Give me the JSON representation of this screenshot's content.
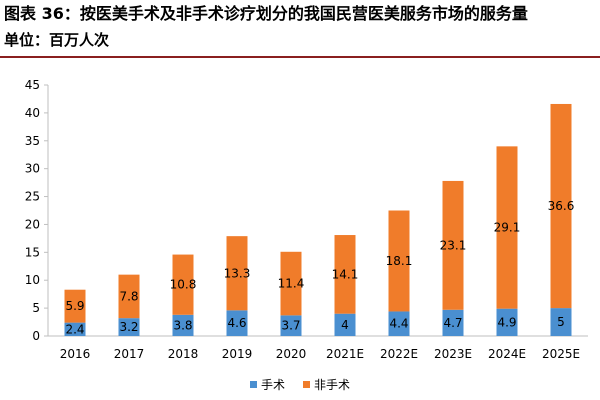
{
  "title": "图表 36：按医美手术及非手术诊疗划分的我国民营医美服务市场的服务量",
  "unit": "单位：百万人次",
  "colors": {
    "surgical": "#4a8fd0",
    "nonsurgical": "#f07c2a",
    "axis": "#bfbfbf",
    "rule": "#8a1f1f"
  },
  "chart_data": {
    "type": "bar",
    "stacked": true,
    "categories": [
      "2016",
      "2017",
      "2018",
      "2019",
      "2020",
      "2021E",
      "2022E",
      "2023E",
      "2024E",
      "2025E"
    ],
    "series": [
      {
        "name": "手术",
        "values": [
          2.4,
          3.2,
          3.8,
          4.6,
          3.7,
          4,
          4.4,
          4.7,
          4.9,
          5
        ]
      },
      {
        "name": "非手术",
        "values": [
          5.9,
          7.8,
          10.8,
          13.3,
          11.4,
          14.1,
          18.1,
          23.1,
          29.1,
          36.6
        ]
      }
    ],
    "ylim": [
      0,
      45
    ],
    "yticks": [
      0,
      5,
      10,
      15,
      20,
      25,
      30,
      35,
      40,
      45
    ],
    "legend_position": "bottom"
  }
}
